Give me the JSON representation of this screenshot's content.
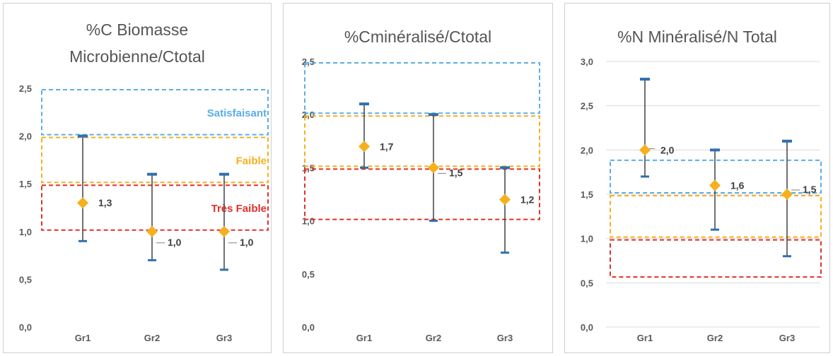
{
  "chart_data": [
    {
      "type": "scatter",
      "title_lines": [
        "%C Biomasse",
        "Microbienne/Ctotal"
      ],
      "categories": [
        "Gr1",
        "Gr2",
        "Gr3"
      ],
      "values": [
        1.3,
        1.0,
        1.0
      ],
      "value_labels": [
        "1,3",
        "1,0",
        "1,0"
      ],
      "error_low": [
        0.9,
        0.7,
        0.6
      ],
      "error_high": [
        2.0,
        1.6,
        1.6
      ],
      "ylim": [
        0,
        2.5
      ],
      "yticks": [
        "0,0",
        "0,5",
        "1,0",
        "1,5",
        "2,0",
        "2,5"
      ],
      "grid": false,
      "zones": [
        {
          "name": "Satisfaisant",
          "from": 2.0,
          "to": 2.5,
          "color": "#5aaee6"
        },
        {
          "name": "Faible",
          "from": 1.5,
          "to": 2.0,
          "color": "#f5b01d"
        },
        {
          "name": "Très Faible",
          "from": 1.0,
          "to": 1.5,
          "color": "#e0302a"
        }
      ]
    },
    {
      "type": "scatter",
      "title_lines": [
        "%Cminéralisé/Ctotal"
      ],
      "categories": [
        "Gr1",
        "Gr2",
        "Gr3"
      ],
      "values": [
        1.7,
        1.5,
        1.2
      ],
      "value_labels": [
        "1,7",
        "1,5",
        "1,2"
      ],
      "error_low": [
        1.5,
        1.0,
        0.7
      ],
      "error_high": [
        2.1,
        2.0,
        1.5
      ],
      "ylim": [
        0,
        2.5
      ],
      "yticks": [
        "0,0",
        "0,5",
        "1,0",
        "1,5",
        "2,0",
        "2,5"
      ],
      "grid": false,
      "zones": [
        {
          "name": "",
          "from": 2.0,
          "to": 2.5,
          "color": "#5aaee6"
        },
        {
          "name": "",
          "from": 1.5,
          "to": 2.0,
          "color": "#f5b01d"
        },
        {
          "name": "",
          "from": 1.0,
          "to": 1.5,
          "color": "#e0302a"
        }
      ]
    },
    {
      "type": "scatter",
      "title_lines": [
        "%N Minéralisé/N Total"
      ],
      "categories": [
        "Gr1",
        "Gr2",
        "Gr3"
      ],
      "values": [
        2.0,
        1.6,
        1.5
      ],
      "value_labels": [
        "2,0",
        "1,6",
        "1,5"
      ],
      "error_low": [
        1.7,
        1.1,
        0.8
      ],
      "error_high": [
        2.8,
        2.0,
        2.1
      ],
      "ylim": [
        0,
        3.0
      ],
      "yticks": [
        "0,0",
        "0,5",
        "1,0",
        "1,5",
        "2,0",
        "2,5",
        "3,0"
      ],
      "grid": true,
      "zones": [
        {
          "name": "",
          "from": 1.5,
          "to": 1.9,
          "color": "#5aaee6"
        },
        {
          "name": "",
          "from": 1.0,
          "to": 1.5,
          "color": "#f5b01d"
        },
        {
          "name": "",
          "from": 0.55,
          "to": 1.0,
          "color": "#e0302a"
        }
      ]
    }
  ],
  "colors": {
    "marker": "#f5b01d",
    "error_bar": "#404040",
    "error_cap": "#2f6fae",
    "axis_text": "#595959",
    "gridline": "#d9d9d9"
  }
}
